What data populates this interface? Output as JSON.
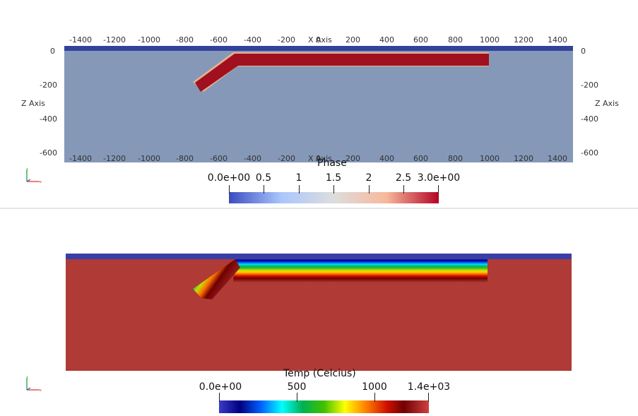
{
  "top_view": {
    "x_axis_title": "X Axis",
    "z_axis_title": "Z Axis",
    "x_ticks": [
      "-1400",
      "-1200",
      "-1000",
      "-800",
      "-600",
      "-400",
      "-200",
      "0",
      "200",
      "400",
      "600",
      "800",
      "1000",
      "1200",
      "1400"
    ],
    "z_ticks": [
      "0",
      "-200",
      "-400",
      "-600"
    ],
    "colorbar": {
      "title": "Phase",
      "labels": [
        "0.0e+00",
        "0.5",
        "1",
        "1.5",
        "2",
        "2.5",
        "3.0e+00"
      ],
      "colormap": "Cool to Warm",
      "colors": [
        "#3b4cc0",
        "#aac7fd",
        "#dddddd",
        "#f7b89c",
        "#b40426"
      ]
    },
    "colors": {
      "background_phase": "#8598b8",
      "top_layer": "#33419a",
      "slab": "#a0101e",
      "slab_edge": "#e8b090"
    }
  },
  "bottom_view": {
    "colorbar": {
      "title": "Temp (Celcius)",
      "labels": [
        "0.0e+00",
        "500",
        "1000",
        "1.4e+03"
      ],
      "colormap": "Rainbow Uniform"
    },
    "colors": {
      "mantle": "#b03a35",
      "top_layer": "#3a3fa8"
    }
  },
  "orientation_widget": {
    "icon": "axes-orientation-icon"
  }
}
